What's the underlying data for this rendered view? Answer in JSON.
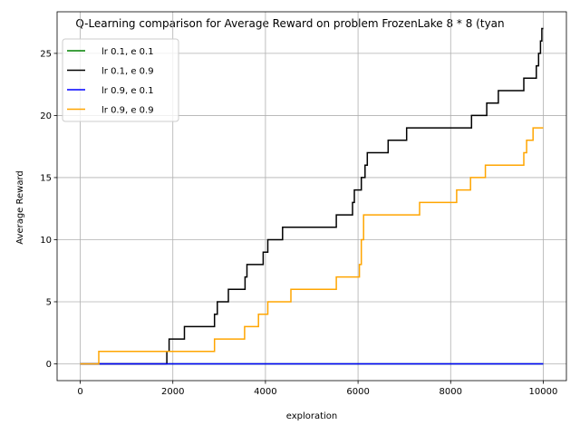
{
  "chart_data": {
    "type": "line",
    "title": "Q-Learning comparison for Average Reward on problem FrozenLake 8 * 8 (tyan",
    "xlabel": "exploration",
    "ylabel": "Average Reward",
    "xlim": [
      -500,
      10500
    ],
    "ylim": [
      -1.35,
      28.35
    ],
    "xticks": [
      0,
      2000,
      4000,
      6000,
      8000,
      10000
    ],
    "yticks": [
      0,
      5,
      10,
      15,
      20,
      25
    ],
    "grid": true,
    "legend_position": "top-left",
    "series": [
      {
        "name": "lr 0.1, e 0.1",
        "color": "#008000",
        "step": true,
        "points": [
          [
            0,
            0
          ],
          [
            10000,
            0
          ]
        ]
      },
      {
        "name": "lr 0.1, e 0.9",
        "color": "#000000",
        "step": true,
        "points": [
          [
            0,
            0
          ],
          [
            1870,
            1
          ],
          [
            1920,
            2
          ],
          [
            2250,
            3
          ],
          [
            2900,
            4
          ],
          [
            2960,
            5
          ],
          [
            3200,
            6
          ],
          [
            3560,
            7
          ],
          [
            3600,
            8
          ],
          [
            3950,
            9
          ],
          [
            4050,
            10
          ],
          [
            4370,
            11
          ],
          [
            5530,
            12
          ],
          [
            5880,
            13
          ],
          [
            5920,
            14
          ],
          [
            6070,
            15
          ],
          [
            6150,
            16
          ],
          [
            6200,
            17
          ],
          [
            6650,
            18
          ],
          [
            7050,
            19
          ],
          [
            8450,
            20
          ],
          [
            8780,
            21
          ],
          [
            9030,
            22
          ],
          [
            9580,
            23
          ],
          [
            9850,
            24
          ],
          [
            9900,
            25
          ],
          [
            9940,
            26
          ],
          [
            9970,
            27
          ],
          [
            10000,
            27
          ]
        ]
      },
      {
        "name": "lr 0.9, e 0.1",
        "color": "#0000ff",
        "step": true,
        "points": [
          [
            0,
            0
          ],
          [
            10000,
            0
          ]
        ]
      },
      {
        "name": "lr 0.9, e 0.9",
        "color": "#ffa500",
        "step": true,
        "points": [
          [
            0,
            0
          ],
          [
            400,
            1
          ],
          [
            2900,
            2
          ],
          [
            3550,
            3
          ],
          [
            3850,
            4
          ],
          [
            4050,
            5
          ],
          [
            4550,
            6
          ],
          [
            5530,
            7
          ],
          [
            6030,
            8
          ],
          [
            6070,
            10
          ],
          [
            6120,
            12
          ],
          [
            7330,
            13
          ],
          [
            8130,
            14
          ],
          [
            8430,
            15
          ],
          [
            8750,
            16
          ],
          [
            9580,
            17
          ],
          [
            9640,
            18
          ],
          [
            9780,
            19
          ],
          [
            10000,
            19
          ]
        ]
      }
    ]
  }
}
